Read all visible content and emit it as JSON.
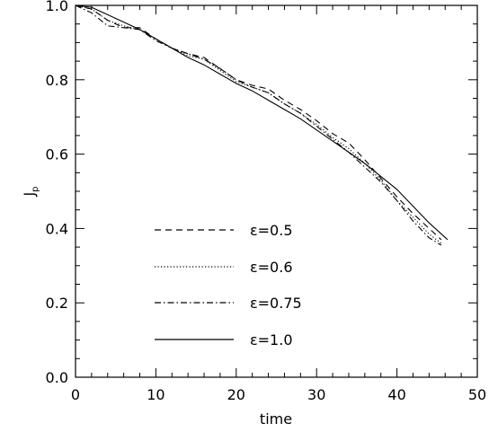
{
  "chart_data": {
    "type": "line",
    "xlabel": "time",
    "ylabel": "J",
    "ylabel_subscript": "p",
    "xlim": [
      0,
      50
    ],
    "ylim": [
      0.0,
      1.0
    ],
    "x_ticks": [
      0,
      10,
      20,
      30,
      40,
      50
    ],
    "x_tick_labels": [
      "0",
      "10",
      "20",
      "30",
      "40",
      "50"
    ],
    "y_ticks": [
      0.0,
      0.2,
      0.4,
      0.6,
      0.8,
      1.0
    ],
    "y_tick_labels": [
      "0.0",
      "0.2",
      "0.4",
      "0.6",
      "0.8",
      "1.0"
    ],
    "grid": false,
    "legend_position": "center-left",
    "series": [
      {
        "name": "ε=0.5",
        "line_style": "dashed",
        "x": [
          0,
          2,
          4,
          6,
          8,
          10,
          12,
          14,
          16,
          18,
          20,
          22,
          24,
          26,
          28,
          30,
          32,
          34,
          36,
          38,
          40,
          42,
          44,
          45.5
        ],
        "y": [
          1.0,
          0.99,
          0.96,
          0.94,
          0.94,
          0.91,
          0.885,
          0.87,
          0.86,
          0.83,
          0.8,
          0.785,
          0.775,
          0.745,
          0.72,
          0.69,
          0.655,
          0.63,
          0.585,
          0.535,
          0.485,
          0.44,
          0.4,
          0.37
        ]
      },
      {
        "name": "ε=0.6",
        "line_style": "dotted",
        "x": [
          0,
          2,
          4,
          6,
          8,
          10,
          12,
          14,
          16,
          18,
          20,
          22,
          24,
          26,
          28,
          30,
          32,
          34,
          36,
          38,
          40,
          42,
          44,
          45.5
        ],
        "y": [
          1.0,
          0.99,
          0.96,
          0.945,
          0.935,
          0.91,
          0.885,
          0.865,
          0.855,
          0.825,
          0.795,
          0.78,
          0.765,
          0.735,
          0.71,
          0.68,
          0.645,
          0.615,
          0.575,
          0.53,
          0.475,
          0.43,
          0.385,
          0.36
        ]
      },
      {
        "name": "ε=0.75",
        "line_style": "dash-dot",
        "x": [
          0,
          2,
          4,
          6,
          8,
          10,
          12,
          14,
          16,
          18,
          20,
          22,
          24,
          26,
          28,
          30,
          32,
          34,
          36,
          38,
          40,
          42,
          44,
          45.5
        ],
        "y": [
          1.0,
          0.98,
          0.945,
          0.94,
          0.935,
          0.905,
          0.885,
          0.87,
          0.855,
          0.83,
          0.8,
          0.78,
          0.765,
          0.735,
          0.71,
          0.675,
          0.64,
          0.605,
          0.565,
          0.525,
          0.475,
          0.42,
          0.375,
          0.355
        ]
      },
      {
        "name": "ε=1.0",
        "line_style": "solid",
        "x": [
          0,
          2,
          4,
          6,
          8,
          10,
          12,
          14,
          16,
          18,
          20,
          22,
          24,
          26,
          28,
          30,
          32,
          34,
          36,
          38,
          40,
          42,
          44,
          46.3
        ],
        "y": [
          1.0,
          0.995,
          0.975,
          0.955,
          0.935,
          0.91,
          0.885,
          0.86,
          0.84,
          0.815,
          0.79,
          0.77,
          0.745,
          0.72,
          0.695,
          0.665,
          0.635,
          0.605,
          0.575,
          0.54,
          0.505,
          0.46,
          0.415,
          0.37
        ]
      }
    ]
  }
}
